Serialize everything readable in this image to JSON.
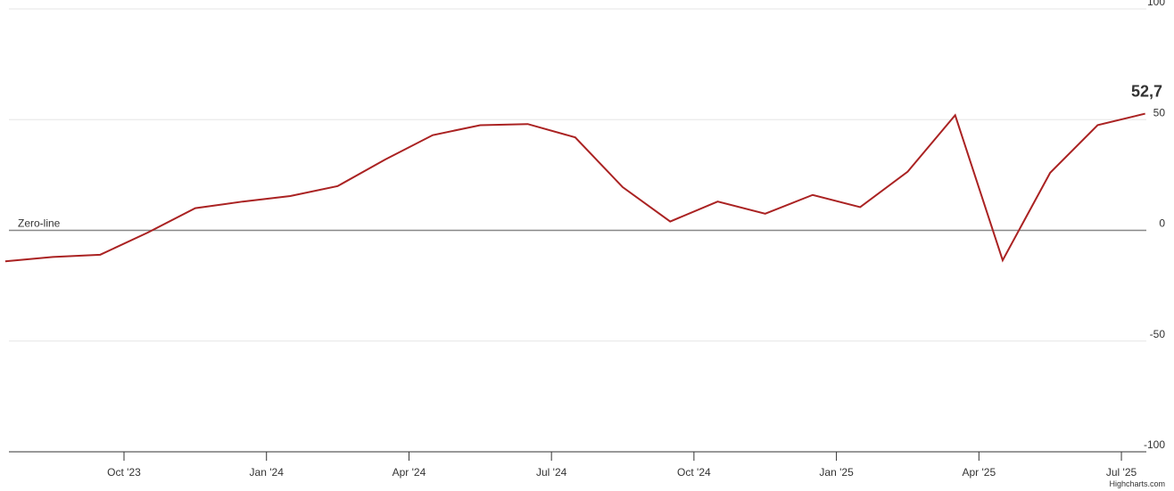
{
  "chart_data": {
    "type": "line",
    "x": [
      "2023-07",
      "2023-08",
      "2023-09",
      "2023-10",
      "2023-11",
      "2023-12",
      "2024-01",
      "2024-02",
      "2024-03",
      "2024-04",
      "2024-05",
      "2024-06",
      "2024-07",
      "2024-08",
      "2024-09",
      "2024-10",
      "2024-11",
      "2024-12",
      "2025-01",
      "2025-02",
      "2025-03",
      "2025-04",
      "2025-05",
      "2025-06",
      "2025-07"
    ],
    "series": [
      {
        "color": "#aa2222",
        "values": [
          -14,
          -12,
          -11,
          -1,
          10,
          13,
          15.5,
          20,
          32,
          43,
          47.5,
          48,
          42,
          19.5,
          4,
          13,
          7.5,
          16,
          10.5,
          26.5,
          52,
          -13.5,
          26,
          47.5,
          52.7
        ],
        "value_labels": [
          null,
          null,
          null,
          null,
          null,
          null,
          null,
          null,
          null,
          null,
          null,
          null,
          null,
          null,
          null,
          null,
          null,
          null,
          null,
          null,
          null,
          null,
          null,
          null,
          "52,7"
        ]
      }
    ],
    "xticks": [
      {
        "value": "2023-10",
        "label": "Oct '23"
      },
      {
        "value": "2024-01",
        "label": "Jan '24"
      },
      {
        "value": "2024-04",
        "label": "Apr '24"
      },
      {
        "value": "2024-07",
        "label": "Jul '24"
      },
      {
        "value": "2024-10",
        "label": "Oct '24"
      },
      {
        "value": "2025-01",
        "label": "Jan '25"
      },
      {
        "value": "2025-04",
        "label": "Apr '25"
      },
      {
        "value": "2025-07",
        "label": "Jul '25"
      }
    ],
    "ylim": [
      -100,
      100
    ],
    "yticks": [
      100,
      50,
      0,
      -50,
      -100
    ],
    "grid": true,
    "plot_lines": [
      {
        "value": 0,
        "label": "Zero-line",
        "color": "#888888"
      }
    ],
    "credits": "Highcharts.com"
  }
}
